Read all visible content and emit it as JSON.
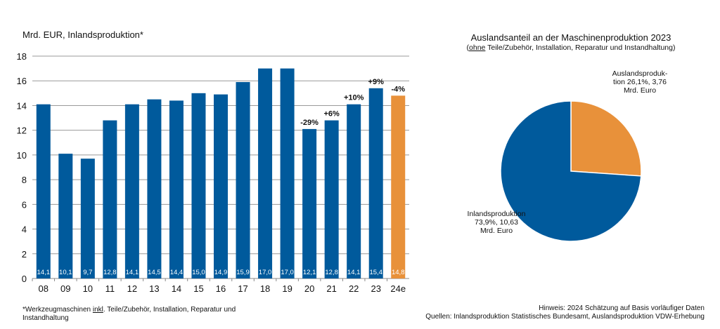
{
  "chart_data": [
    {
      "type": "bar",
      "ylabel": "Mrd. EUR, Inlandsproduktion*",
      "categories": [
        "08",
        "09",
        "10",
        "11",
        "12",
        "13",
        "14",
        "15",
        "16",
        "17",
        "18",
        "19",
        "20",
        "21",
        "22",
        "23",
        "24e"
      ],
      "values": [
        14.1,
        10.1,
        9.7,
        12.8,
        14.1,
        14.5,
        14.4,
        15.0,
        14.9,
        15.9,
        17.0,
        17.0,
        12.1,
        12.8,
        14.1,
        15.4,
        14.8
      ],
      "value_labels": [
        "14,1",
        "10,1",
        "9,7",
        "12,8",
        "14,1",
        "14,5",
        "14,4",
        "15,0",
        "14,9",
        "15,9",
        "17,0",
        "17,0",
        "12,1",
        "12,8",
        "14,1",
        "15,4",
        "14,8"
      ],
      "change_labels": [
        "",
        "",
        "",
        "",
        "",
        "",
        "",
        "",
        "",
        "",
        "",
        "",
        "-29%",
        "+6%",
        "+10%",
        "+9%",
        "-4%"
      ],
      "ylim": [
        0,
        18
      ],
      "yticks": [
        0,
        2,
        4,
        6,
        8,
        10,
        12,
        14,
        16,
        18
      ],
      "grid": true,
      "colors": {
        "actual": "#005a9c",
        "estimate": "#e8913a"
      },
      "estimate_index": 16
    },
    {
      "type": "pie",
      "title": "Auslandsanteil an der Maschinenproduktion 2023",
      "subtitle_underlined": "ohne",
      "subtitle_rest": " Teile/Zubehör, Installation, Reparatur und Instandhaltung)",
      "subtitle_open": "(",
      "slices": [
        {
          "label_lines": [
            "Auslandsproduk-",
            "tion 26,1%, 3,76",
            "Mrd. Euro"
          ],
          "value": 26.1,
          "abs": 3.76,
          "color": "#e8913a"
        },
        {
          "label_lines": [
            "Inlandsproduktion",
            "73,9%, 10,63",
            "Mrd. Euro"
          ],
          "value": 73.9,
          "abs": 10.63,
          "color": "#005a9c"
        }
      ]
    }
  ],
  "footnote": {
    "pre": "*Werkzeugmaschinen ",
    "underlined": "inkl",
    "post": ". Teile/Zubehör, Installation, Reparatur und",
    "line2": "Instandhaltung"
  },
  "notes": {
    "hint": "Hinweis: 2024 Schätzung auf Basis vorläufiger Daten",
    "sources": "Quellen: Inlandsproduktion Statistisches Bundesamt, Auslandsproduktion VDW-Erhebung"
  }
}
